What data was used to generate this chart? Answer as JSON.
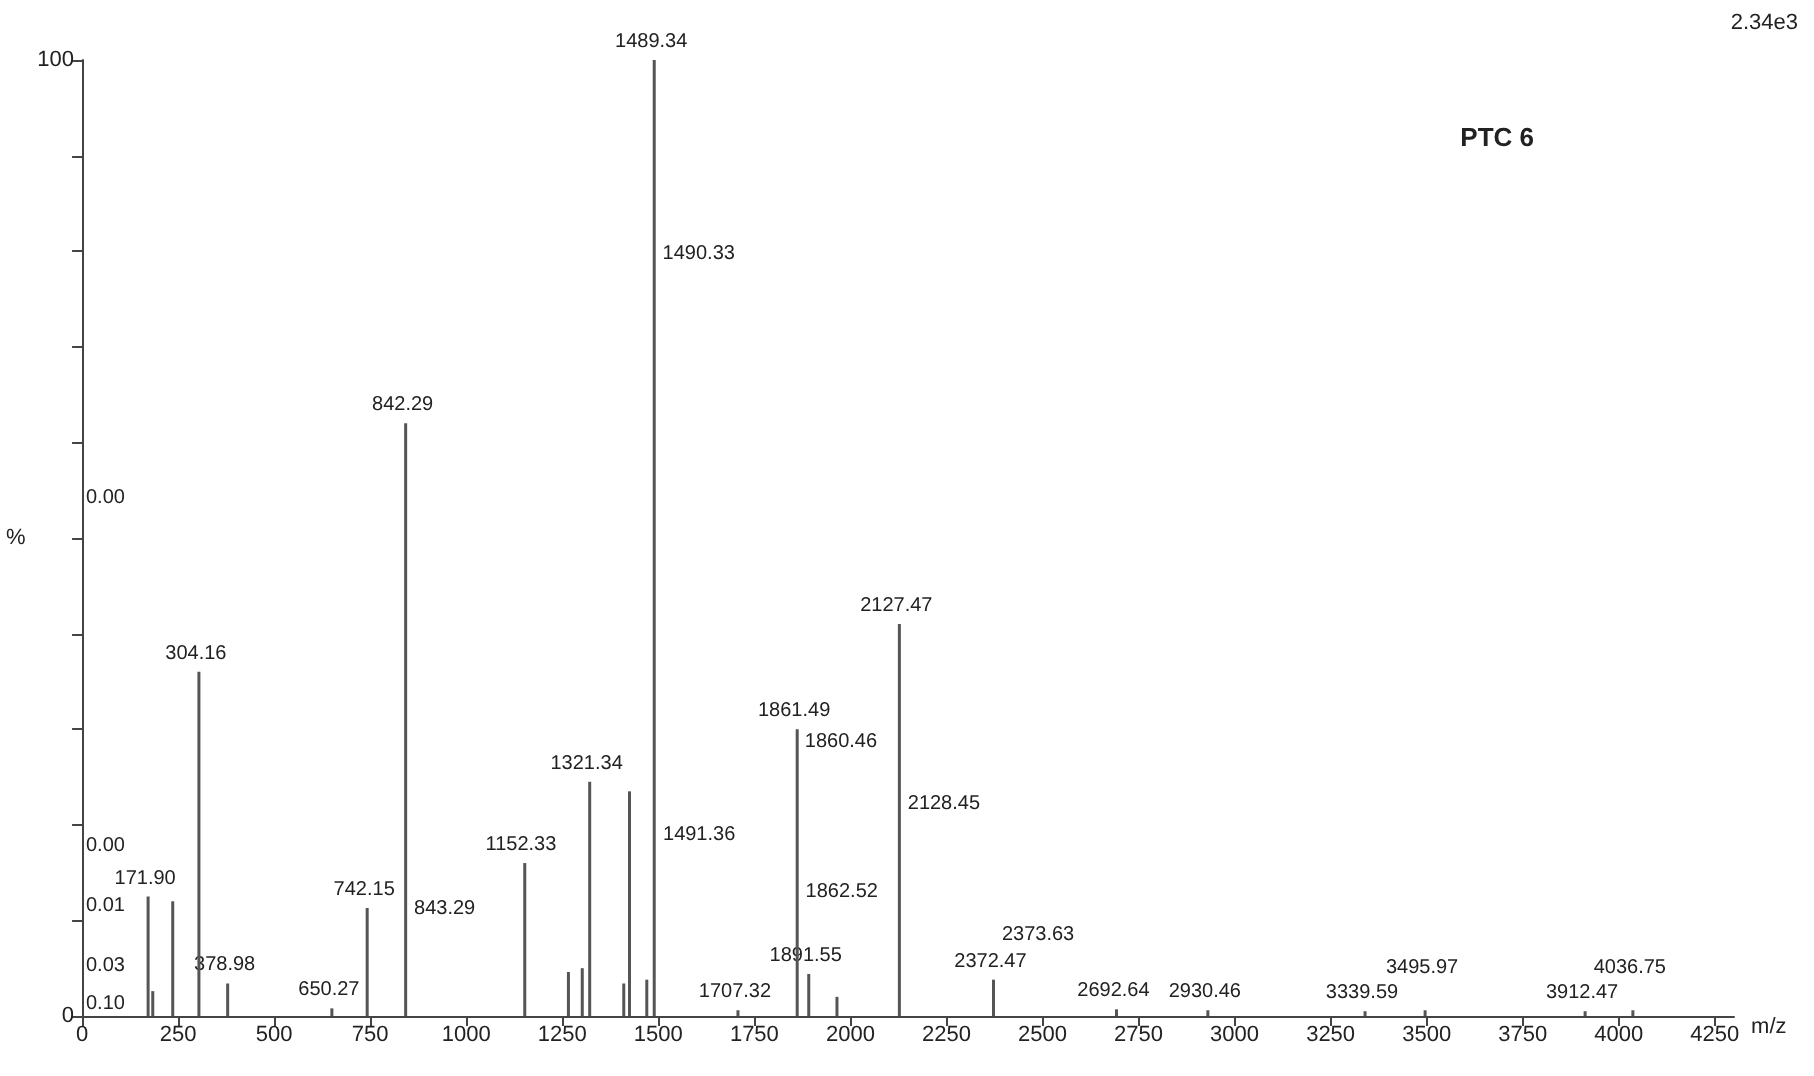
{
  "chart_data": {
    "type": "bar",
    "xlabel": "m/z",
    "ylabel": "%",
    "color": "#555555",
    "x": [
      171.9,
      184,
      236,
      304.16,
      378.98,
      650.27,
      742.15,
      842.29,
      1152.33,
      1266,
      1302,
      1321.34,
      1410,
      1425,
      1470,
      1489.34,
      1707.32,
      1861.49,
      1891.55,
      1965,
      2127.47,
      2372.47,
      2692.64,
      2930.46,
      3339.59,
      3495.97,
      3912.47,
      4036.75
    ],
    "values": [
      12.5,
      2.6,
      12,
      36,
      3.4,
      0.8,
      11.3,
      62,
      16,
      4.6,
      5,
      24.5,
      3.4,
      23.5,
      3.8,
      100,
      0.6,
      30,
      4.4,
      2,
      41,
      3.8,
      0.7,
      0.6,
      0.5,
      0.6,
      0.5,
      0.6
    ],
    "xlim": [
      0,
      4300
    ],
    "xticks": [
      0,
      250,
      500,
      750,
      1000,
      1250,
      1500,
      1750,
      2000,
      2250,
      2500,
      2750,
      3000,
      3250,
      3500,
      3750,
      4000,
      4250
    ],
    "ylim": [
      0,
      100
    ],
    "yticks": [
      0,
      {
        "value": 10,
        "label": null
      },
      {
        "value": 20,
        "label": null
      },
      {
        "value": 30,
        "label": null
      },
      {
        "value": 40,
        "label": null
      },
      {
        "value": 50,
        "label": null
      },
      {
        "value": 60,
        "label": null
      },
      {
        "value": 70,
        "label": null
      },
      {
        "value": 80,
        "label": null
      },
      {
        "value": 90,
        "label": null
      },
      100
    ],
    "annotations": [
      "2.34e3",
      "PTC 6",
      "0.00",
      "0.00",
      "0.01",
      "0.03",
      "0.10",
      {
        "text": "171.90",
        "x": 171.9,
        "y": 12.5
      },
      {
        "text": "304.16",
        "x": 304.16,
        "y": 36
      },
      {
        "text": "378.98",
        "x": 378.98,
        "y": 3.4
      },
      {
        "text": "650.27",
        "x": 650.27,
        "y": 0.8
      },
      {
        "text": "742.15",
        "x": 742.15,
        "y": 11.3
      },
      {
        "text": "842.29",
        "x": 842.29,
        "y": 62
      },
      {
        "text": "1152.33",
        "x": 1152.33,
        "y": 16
      },
      {
        "text": "1321.34",
        "x": 1321.34,
        "y": 24.5
      },
      {
        "text": "1489.34",
        "x": 1489.34,
        "y": 100
      },
      {
        "text": "1707.32",
        "x": 1707.32,
        "y": 0.6
      },
      {
        "text": "1861.49",
        "x": 1861.49,
        "y": 30
      },
      {
        "text": "1891.55",
        "x": 1891.55,
        "y": 4.4
      },
      {
        "text": "2127.47",
        "x": 2127.47,
        "y": 41
      },
      {
        "text": "2372.47",
        "x": 2372.47,
        "y": 3.8
      },
      {
        "text": "2692.64",
        "x": 2692.64,
        "y": 0.7
      },
      {
        "text": "2930.46",
        "x": 2930.46,
        "y": 0.6
      },
      {
        "text": "3339.59",
        "x": 3339.59,
        "y": 0.5
      },
      {
        "text": "3495.97",
        "x": 3495.97,
        "y": 0.6
      },
      {
        "text": "3912.47",
        "x": 3912.47,
        "y": 0.5
      },
      {
        "text": "4036.75",
        "x": 4036.75,
        "y": 0.6
      },
      {
        "text": "1490.33",
        "x": 1490.33,
        "y": 78
      },
      {
        "text": "1491.36",
        "x": 1491.36,
        "y": 17.3
      },
      {
        "text": "843.29",
        "x": 843.29,
        "y": 9.5
      },
      {
        "text": "1860.46",
        "x": 1860.46,
        "y": 27
      },
      {
        "text": "1862.52",
        "x": 1862.52,
        "y": 11.3
      },
      {
        "text": "2128.45",
        "x": 2128.45,
        "y": 20.5
      },
      {
        "text": "2373.63",
        "x": 2373.63,
        "y": 1.8
      }
    ]
  }
}
